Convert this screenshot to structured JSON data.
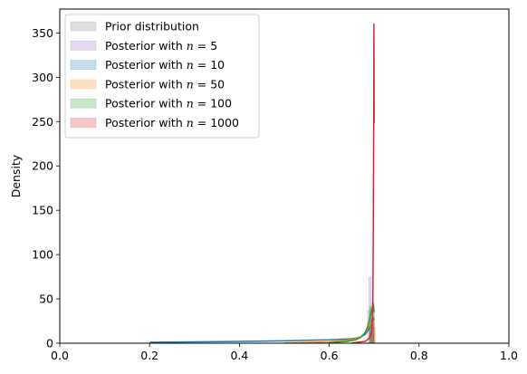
{
  "chart_data": {
    "type": "area",
    "title": "",
    "xlabel": "",
    "ylabel": "Density",
    "xlim": [
      0.0,
      1.0
    ],
    "ylim": [
      0,
      377
    ],
    "grid": false,
    "legend_position": "top-left",
    "x_ticks": [
      "0.0",
      "0.2",
      "0.4",
      "0.6",
      "0.8",
      "1.0"
    ],
    "y_ticks": [
      "0",
      "50",
      "100",
      "150",
      "200",
      "250",
      "300",
      "350"
    ],
    "series": [
      {
        "name": "Prior distribution",
        "legend_prefix": "Prior distribution",
        "legend_n": "",
        "color": "#7f7f7f",
        "histogram": [
          {
            "x0": 0.685,
            "x1": 0.69,
            "y": 37
          },
          {
            "x0": 0.69,
            "x1": 0.695,
            "y": 42
          },
          {
            "x0": 0.695,
            "x1": 0.7,
            "y": 40
          }
        ],
        "curve": []
      },
      {
        "name": "Posterior with n = 5",
        "legend_prefix": "Posterior with ",
        "legend_n": "5",
        "color": "#9467bd",
        "histogram": [
          {
            "x0": 0.688,
            "x1": 0.693,
            "y": 75
          },
          {
            "x0": 0.693,
            "x1": 0.698,
            "y": 18
          }
        ],
        "curve": []
      },
      {
        "name": "Posterior with n = 10",
        "legend_prefix": "Posterior with ",
        "legend_n": "10",
        "color": "#1f77b4",
        "histogram": [
          {
            "x0": 0.69,
            "x1": 0.695,
            "y": 28
          },
          {
            "x0": 0.695,
            "x1": 0.7,
            "y": 22
          }
        ],
        "curve": [
          [
            0.2,
            1.0
          ],
          [
            0.3,
            1.5
          ],
          [
            0.4,
            2.0
          ],
          [
            0.5,
            2.7
          ],
          [
            0.6,
            3.8
          ],
          [
            0.65,
            5.0
          ],
          [
            0.67,
            7.0
          ],
          [
            0.68,
            10.0
          ],
          [
            0.69,
            17.0
          ],
          [
            0.695,
            25.0
          ],
          [
            0.7,
            28.0
          ]
        ]
      },
      {
        "name": "Posterior with n = 50",
        "legend_prefix": "Posterior with ",
        "legend_n": "50",
        "color": "#ff7f0e",
        "histogram": [
          {
            "x0": 0.693,
            "x1": 0.698,
            "y": 26
          },
          {
            "x0": 0.698,
            "x1": 0.703,
            "y": 18
          }
        ],
        "curve": [
          [
            0.5,
            0.3
          ],
          [
            0.6,
            1.5
          ],
          [
            0.65,
            4.0
          ],
          [
            0.67,
            7.0
          ],
          [
            0.68,
            12.0
          ],
          [
            0.69,
            20.0
          ],
          [
            0.695,
            24.0
          ],
          [
            0.7,
            22.0
          ]
        ]
      },
      {
        "name": "Posterior with n = 100",
        "legend_prefix": "Posterior with ",
        "legend_n": "100",
        "color": "#2ca02c",
        "histogram": [
          {
            "x0": 0.69,
            "x1": 0.695,
            "y": 40
          },
          {
            "x0": 0.695,
            "x1": 0.7,
            "y": 46
          }
        ],
        "curve": [
          [
            0.6,
            0.5
          ],
          [
            0.64,
            2.0
          ],
          [
            0.66,
            4.0
          ],
          [
            0.67,
            6.5
          ],
          [
            0.68,
            12.0
          ],
          [
            0.685,
            18.0
          ],
          [
            0.69,
            28.0
          ],
          [
            0.695,
            38.0
          ],
          [
            0.698,
            44.0
          ],
          [
            0.7,
            35.0
          ]
        ]
      },
      {
        "name": "Posterior with n = 1000",
        "legend_prefix": "Posterior with ",
        "legend_n": "1000",
        "color": "#d62728",
        "histogram": [
          {
            "x0": 0.695,
            "x1": 0.698,
            "y": 15
          },
          {
            "x0": 0.698,
            "x1": 0.7,
            "y": 30
          }
        ],
        "curve": [
          [
            0.65,
            0.3
          ],
          [
            0.68,
            2.0
          ],
          [
            0.69,
            6.0
          ],
          [
            0.695,
            15.0
          ],
          [
            0.697,
            40.0
          ],
          [
            0.698,
            120.0
          ],
          [
            0.699,
            250.0
          ],
          [
            0.6995,
            360.0
          ],
          [
            0.7,
            248.0
          ]
        ]
      }
    ]
  }
}
